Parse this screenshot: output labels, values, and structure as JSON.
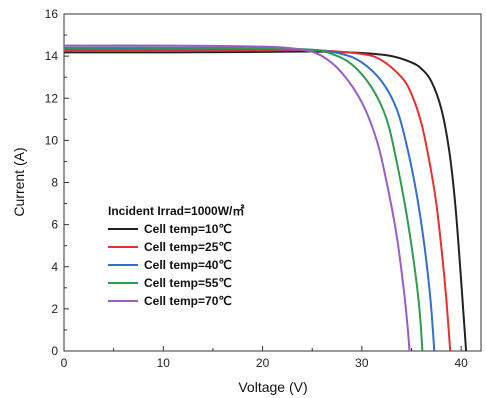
{
  "chart_data": {
    "type": "line",
    "xlabel": "Voltage (V)",
    "ylabel": "Current (A)",
    "xlim": [
      0,
      42
    ],
    "ylim": [
      0,
      16
    ],
    "x_ticks": [
      "0",
      "10",
      "20",
      "30",
      "40"
    ],
    "y_ticks": [
      "0",
      "2",
      "4",
      "6",
      "8",
      "10",
      "12",
      "14",
      "16"
    ],
    "grid": false,
    "legend_placement": "lower-left",
    "legend_title": "Incident Irrad=1000W/㎡",
    "series": [
      {
        "name": "Cell temp=10℃",
        "color": "#222222",
        "points": [
          [
            0,
            14.18
          ],
          [
            10,
            14.18
          ],
          [
            20,
            14.2
          ],
          [
            25,
            14.22
          ],
          [
            30,
            14.15
          ],
          [
            33,
            14.0
          ],
          [
            35,
            13.7
          ],
          [
            36,
            13.4
          ],
          [
            37,
            12.8
          ],
          [
            38,
            11.5
          ],
          [
            38.8,
            9.5
          ],
          [
            39.4,
            7.0
          ],
          [
            39.9,
            4.0
          ],
          [
            40.2,
            2.0
          ],
          [
            40.5,
            0
          ]
        ]
      },
      {
        "name": "Cell temp=25℃",
        "color": "#e8302e",
        "points": [
          [
            0,
            14.25
          ],
          [
            10,
            14.25
          ],
          [
            20,
            14.27
          ],
          [
            25,
            14.28
          ],
          [
            30,
            14.1
          ],
          [
            32,
            13.8
          ],
          [
            34,
            13.0
          ],
          [
            35,
            12.2
          ],
          [
            36,
            10.8
          ],
          [
            36.8,
            9.0
          ],
          [
            37.5,
            7.0
          ],
          [
            38.1,
            4.5
          ],
          [
            38.5,
            2.5
          ],
          [
            38.9,
            0
          ]
        ]
      },
      {
        "name": "Cell temp=40℃",
        "color": "#2f6fce",
        "points": [
          [
            0,
            14.33
          ],
          [
            10,
            14.33
          ],
          [
            20,
            14.33
          ],
          [
            25,
            14.3
          ],
          [
            28,
            14.1
          ],
          [
            30,
            13.7
          ],
          [
            32,
            12.8
          ],
          [
            33.5,
            11.5
          ],
          [
            34.5,
            9.8
          ],
          [
            35.5,
            7.5
          ],
          [
            36.3,
            5.0
          ],
          [
            36.9,
            2.5
          ],
          [
            37.3,
            0
          ]
        ]
      },
      {
        "name": "Cell temp=55℃",
        "color": "#2e9b4f",
        "points": [
          [
            0,
            14.4
          ],
          [
            10,
            14.4
          ],
          [
            20,
            14.38
          ],
          [
            25,
            14.3
          ],
          [
            27,
            14.1
          ],
          [
            29,
            13.6
          ],
          [
            31,
            12.5
          ],
          [
            32.5,
            11.0
          ],
          [
            33.5,
            9.0
          ],
          [
            34.5,
            6.5
          ],
          [
            35.3,
            4.0
          ],
          [
            35.8,
            2.0
          ],
          [
            36.1,
            0
          ]
        ]
      },
      {
        "name": "Cell temp=70℃",
        "color": "#9a5cc8",
        "points": [
          [
            0,
            14.5
          ],
          [
            10,
            14.5
          ],
          [
            20,
            14.45
          ],
          [
            24,
            14.3
          ],
          [
            26,
            14.0
          ],
          [
            28,
            13.2
          ],
          [
            30,
            11.8
          ],
          [
            31.5,
            10.0
          ],
          [
            32.5,
            8.0
          ],
          [
            33.5,
            5.5
          ],
          [
            34.2,
            3.0
          ],
          [
            34.6,
            1.2
          ],
          [
            34.8,
            0
          ]
        ]
      }
    ]
  }
}
